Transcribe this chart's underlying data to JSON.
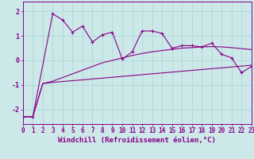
{
  "title": "",
  "xlabel": "Windchill (Refroidissement éolien,°C)",
  "bg_color": "#cce8e8",
  "line_color": "#880088",
  "xlim": [
    0,
    23
  ],
  "ylim": [
    -2.6,
    2.4
  ],
  "xticks": [
    0,
    1,
    2,
    3,
    4,
    5,
    6,
    7,
    8,
    9,
    10,
    11,
    12,
    13,
    14,
    15,
    16,
    17,
    18,
    19,
    20,
    21,
    22,
    23
  ],
  "yticks": [
    -2,
    -1,
    0,
    1,
    2
  ],
  "series1_x": [
    0,
    1,
    3,
    4,
    5,
    6,
    7,
    8,
    9,
    10,
    11,
    12,
    13,
    14,
    15,
    16,
    17,
    18,
    19,
    20,
    21,
    22,
    23
  ],
  "series1_y": [
    -2.3,
    -2.3,
    1.9,
    1.65,
    1.15,
    1.4,
    0.75,
    1.05,
    1.15,
    0.05,
    0.35,
    1.2,
    1.2,
    1.1,
    0.5,
    0.6,
    0.6,
    0.55,
    0.7,
    0.25,
    0.1,
    -0.5,
    -0.25
  ],
  "series2_x": [
    0,
    1,
    2,
    3,
    23
  ],
  "series2_y": [
    -2.3,
    -2.3,
    -0.95,
    -0.9,
    -0.2
  ],
  "series3_x": [
    0,
    1,
    2,
    3,
    4,
    5,
    6,
    7,
    8,
    9,
    10,
    11,
    12,
    13,
    14,
    15,
    16,
    17,
    18,
    19,
    20,
    21,
    22,
    23
  ],
  "series3_y": [
    -2.3,
    -2.3,
    -0.95,
    -0.85,
    -0.7,
    -0.55,
    -0.4,
    -0.25,
    -0.1,
    0.0,
    0.1,
    0.2,
    0.28,
    0.35,
    0.4,
    0.45,
    0.5,
    0.52,
    0.55,
    0.56,
    0.55,
    0.52,
    0.48,
    0.44
  ],
  "grid_color": "#aad4d4",
  "tick_fontsize": 5.5,
  "xlabel_fontsize": 6.5
}
